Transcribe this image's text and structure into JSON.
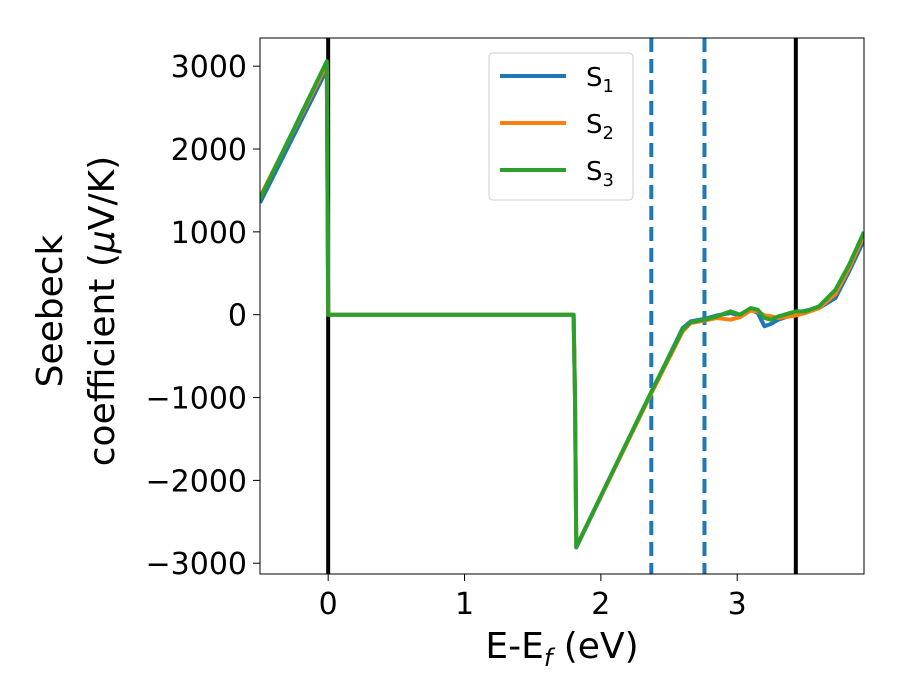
{
  "chart_data": {
    "type": "line",
    "xlabel": "E-E",
    "xlabel_sub": "f",
    "xlabel_unit": " (eV)",
    "ylabel_line1": "Seebeck",
    "ylabel_line2_a": "coefficient  (",
    "ylabel_line2_mu": "μ",
    "ylabel_line2_b": "V/K)",
    "xlim": [
      -0.5,
      3.93
    ],
    "ylim": [
      -3130,
      3340
    ],
    "x_ticks": [
      0,
      1,
      2,
      3
    ],
    "x_tick_labels": [
      "0",
      "1",
      "2",
      "3"
    ],
    "y_ticks": [
      -3000,
      -2000,
      -1000,
      0,
      1000,
      2000,
      3000
    ],
    "y_tick_labels": [
      "−3000",
      "−2000",
      "−1000",
      "0",
      "1000",
      "2000",
      "3000"
    ],
    "legend_position": "upper-center",
    "vlines_solid": [
      0.0,
      3.43
    ],
    "vlines_dashed": [
      2.37,
      2.76
    ],
    "series": [
      {
        "name": "S",
        "sub": "1",
        "color": "#1f77b4",
        "x": [
          -0.5,
          -0.01,
          0.0,
          0.01,
          1.8,
          1.81,
          1.82,
          2.37,
          2.6,
          2.66,
          2.76,
          2.85,
          2.95,
          3.02,
          3.1,
          3.15,
          3.2,
          3.25,
          3.3,
          3.43,
          3.5,
          3.6,
          3.72,
          3.82,
          3.93
        ],
        "y": [
          1350,
          2960,
          0,
          0,
          0,
          -1000,
          -2810,
          -940,
          -160,
          -80,
          -50,
          -10,
          20,
          -10,
          60,
          20,
          -140,
          -110,
          -60,
          10,
          50,
          80,
          200,
          520,
          900
        ]
      },
      {
        "name": "S",
        "sub": "2",
        "color": "#ff7f0e",
        "x": [
          -0.5,
          -0.01,
          0.0,
          0.01,
          1.8,
          1.81,
          1.82,
          2.37,
          2.6,
          2.66,
          2.76,
          2.85,
          2.95,
          3.02,
          3.1,
          3.15,
          3.2,
          3.25,
          3.3,
          3.43,
          3.5,
          3.6,
          3.72,
          3.82,
          3.93
        ],
        "y": [
          1420,
          3020,
          0,
          0,
          0,
          -1000,
          -2800,
          -950,
          -200,
          -100,
          -70,
          -40,
          -60,
          -30,
          50,
          40,
          -10,
          -20,
          -40,
          -10,
          20,
          80,
          250,
          560,
          960
        ]
      },
      {
        "name": "S",
        "sub": "3",
        "color": "#2ca02c",
        "x": [
          -0.5,
          -0.01,
          0.0,
          0.01,
          1.8,
          1.81,
          1.82,
          2.37,
          2.6,
          2.66,
          2.76,
          2.85,
          2.95,
          3.02,
          3.1,
          3.15,
          3.2,
          3.25,
          3.3,
          3.43,
          3.5,
          3.6,
          3.72,
          3.82,
          3.93
        ],
        "y": [
          1400,
          3060,
          0,
          0,
          0,
          -1000,
          -2800,
          -930,
          -180,
          -90,
          -60,
          -20,
          40,
          0,
          80,
          60,
          -40,
          -60,
          -20,
          40,
          40,
          100,
          300,
          600,
          1000
        ]
      }
    ]
  }
}
